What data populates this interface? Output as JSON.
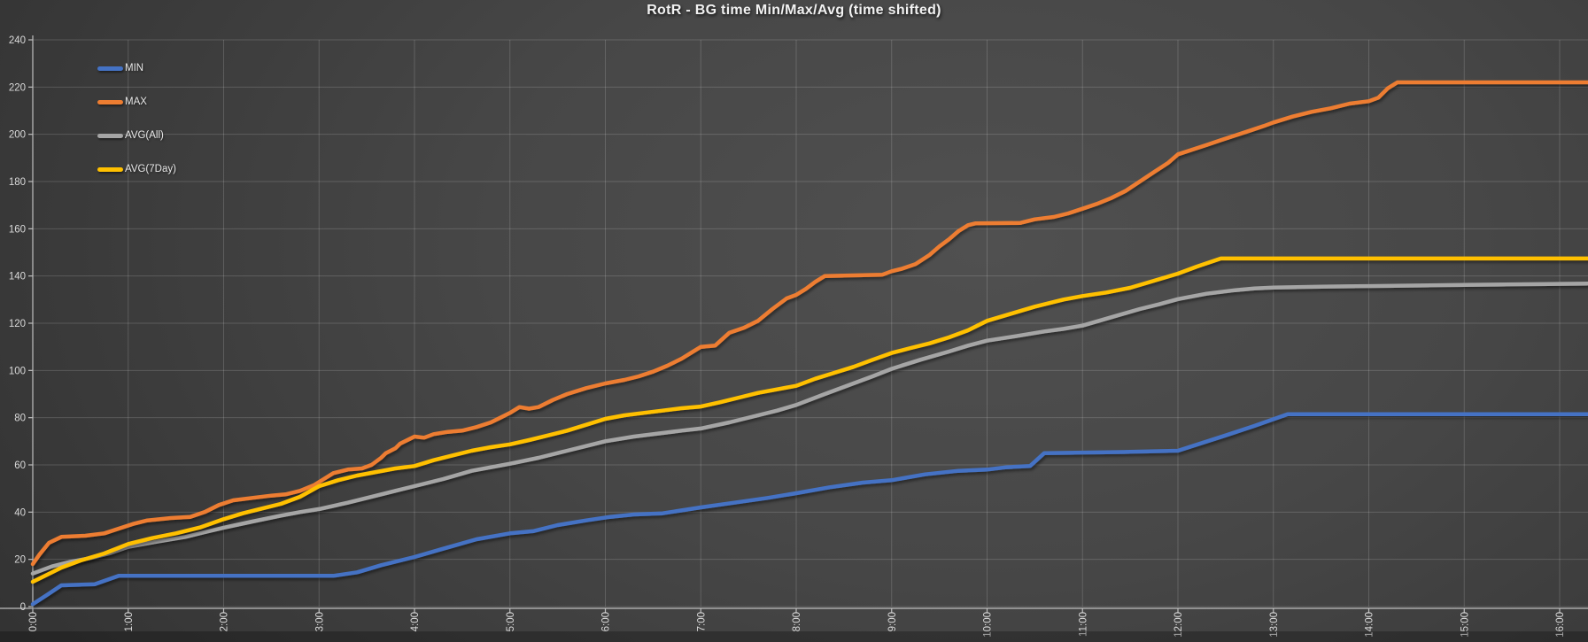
{
  "chart_data": {
    "type": "line",
    "title": "RotR - BG time Min/Max/Avg (time shifted)",
    "x_axis": {
      "tick_labels": [
        "0:00",
        "1:00",
        "2:00",
        "3:00",
        "4:00",
        "5:00",
        "6:00",
        "7:00",
        "8:00",
        "9:00",
        "10:00",
        "11:00",
        "12:00",
        "13:00",
        "14:00",
        "15:00",
        "16:00"
      ],
      "tick_hours": [
        0,
        1,
        2,
        3,
        4,
        5,
        6,
        7,
        8,
        9,
        10,
        11,
        12,
        13,
        14,
        15,
        16
      ],
      "range_hours": [
        0,
        16.3
      ]
    },
    "y_axis": {
      "ticks": [
        0,
        20,
        40,
        60,
        80,
        100,
        120,
        140,
        160,
        180,
        200,
        220,
        240
      ],
      "range": [
        0,
        240
      ]
    },
    "grid": true,
    "legend": {
      "position": "top-left",
      "entries": [
        "MIN",
        "MAX",
        "AVG(All)",
        "AVG(7Day)"
      ]
    },
    "series": [
      {
        "name": "MIN",
        "color": "#4472C4",
        "points": [
          [
            0,
            1
          ],
          [
            0.15,
            5
          ],
          [
            0.3,
            9
          ],
          [
            0.65,
            9.5
          ],
          [
            0.9,
            13
          ],
          [
            1.5,
            13
          ],
          [
            3.15,
            13
          ],
          [
            3.4,
            14.5
          ],
          [
            3.65,
            17.5
          ],
          [
            4,
            21
          ],
          [
            4.3,
            24.5
          ],
          [
            4.65,
            28.5
          ],
          [
            5,
            31
          ],
          [
            5.25,
            32
          ],
          [
            5.5,
            34.5
          ],
          [
            5.8,
            36.5
          ],
          [
            6.05,
            38
          ],
          [
            6.3,
            39
          ],
          [
            6.6,
            39.5
          ],
          [
            7,
            42
          ],
          [
            7.35,
            44
          ],
          [
            7.7,
            46
          ],
          [
            8,
            48
          ],
          [
            8.35,
            50.5
          ],
          [
            8.7,
            52.5
          ],
          [
            9,
            53.5
          ],
          [
            9.35,
            56
          ],
          [
            9.7,
            57.5
          ],
          [
            10,
            58
          ],
          [
            10.2,
            59
          ],
          [
            10.45,
            59.5
          ],
          [
            10.6,
            65
          ],
          [
            11.5,
            65.5
          ],
          [
            12,
            66
          ],
          [
            12.5,
            72.5
          ],
          [
            12.8,
            76.5
          ],
          [
            13.15,
            81.5
          ],
          [
            16.3,
            81.5
          ]
        ]
      },
      {
        "name": "MAX",
        "color": "#ED7D31",
        "points": [
          [
            0,
            18
          ],
          [
            0.07,
            22
          ],
          [
            0.17,
            27
          ],
          [
            0.3,
            29.5
          ],
          [
            0.55,
            30
          ],
          [
            0.75,
            31
          ],
          [
            0.9,
            33
          ],
          [
            1.05,
            35
          ],
          [
            1.2,
            36.5
          ],
          [
            1.45,
            37.5
          ],
          [
            1.65,
            38
          ],
          [
            1.8,
            40
          ],
          [
            1.95,
            43
          ],
          [
            2.1,
            45
          ],
          [
            2.3,
            46
          ],
          [
            2.5,
            47
          ],
          [
            2.65,
            47.5
          ],
          [
            2.8,
            49
          ],
          [
            2.95,
            51.5
          ],
          [
            3.05,
            54
          ],
          [
            3.15,
            56.5
          ],
          [
            3.3,
            58
          ],
          [
            3.45,
            58.5
          ],
          [
            3.55,
            60
          ],
          [
            3.65,
            63
          ],
          [
            3.7,
            65
          ],
          [
            3.8,
            67
          ],
          [
            3.85,
            69
          ],
          [
            3.95,
            71
          ],
          [
            4,
            72
          ],
          [
            4.1,
            71.5
          ],
          [
            4.2,
            73
          ],
          [
            4.35,
            74
          ],
          [
            4.5,
            74.5
          ],
          [
            4.65,
            76
          ],
          [
            4.8,
            78
          ],
          [
            4.9,
            80
          ],
          [
            5,
            82
          ],
          [
            5.1,
            84.5
          ],
          [
            5.2,
            83.8
          ],
          [
            5.3,
            84.5
          ],
          [
            5.45,
            87.5
          ],
          [
            5.6,
            90
          ],
          [
            5.8,
            92.5
          ],
          [
            6,
            94.5
          ],
          [
            6.2,
            96
          ],
          [
            6.35,
            97.5
          ],
          [
            6.5,
            99.5
          ],
          [
            6.65,
            102
          ],
          [
            6.8,
            105
          ],
          [
            6.9,
            107.5
          ],
          [
            7,
            110
          ],
          [
            7.15,
            110.5
          ],
          [
            7.3,
            116
          ],
          [
            7.45,
            118
          ],
          [
            7.6,
            121
          ],
          [
            7.75,
            126
          ],
          [
            7.9,
            130.5
          ],
          [
            8,
            132
          ],
          [
            8.1,
            134.5
          ],
          [
            8.2,
            137.5
          ],
          [
            8.3,
            140
          ],
          [
            8.9,
            140.5
          ],
          [
            9,
            142
          ],
          [
            9.1,
            143
          ],
          [
            9.25,
            145
          ],
          [
            9.4,
            149
          ],
          [
            9.5,
            152.5
          ],
          [
            9.6,
            155.5
          ],
          [
            9.7,
            159
          ],
          [
            9.8,
            161.5
          ],
          [
            9.88,
            162.3
          ],
          [
            10.35,
            162.5
          ],
          [
            10.5,
            164
          ],
          [
            10.7,
            165
          ],
          [
            10.85,
            166.5
          ],
          [
            11,
            168.5
          ],
          [
            11.15,
            170.5
          ],
          [
            11.3,
            173
          ],
          [
            11.45,
            176
          ],
          [
            11.6,
            180
          ],
          [
            11.75,
            184
          ],
          [
            11.9,
            188
          ],
          [
            12,
            191.5
          ],
          [
            12.15,
            193.5
          ],
          [
            12.3,
            195.5
          ],
          [
            12.45,
            197.5
          ],
          [
            12.6,
            199.5
          ],
          [
            12.75,
            201.5
          ],
          [
            12.9,
            203.5
          ],
          [
            13,
            205
          ],
          [
            13.2,
            207.5
          ],
          [
            13.4,
            209.5
          ],
          [
            13.6,
            211
          ],
          [
            13.8,
            213
          ],
          [
            14,
            214
          ],
          [
            14.1,
            215.5
          ],
          [
            14.2,
            219.5
          ],
          [
            14.3,
            222
          ],
          [
            16.3,
            222
          ]
        ]
      },
      {
        "name": "AVG(All)",
        "color": "#A5A5A5",
        "points": [
          [
            0,
            14
          ],
          [
            0.2,
            17
          ],
          [
            0.4,
            19
          ],
          [
            0.6,
            20.5
          ],
          [
            0.8,
            22.5
          ],
          [
            1,
            25.3
          ],
          [
            1.3,
            27.5
          ],
          [
            1.6,
            29.5
          ],
          [
            1.8,
            31.5
          ],
          [
            2,
            33.4
          ],
          [
            2.3,
            36
          ],
          [
            2.6,
            38.5
          ],
          [
            2.8,
            40
          ],
          [
            3,
            41.3
          ],
          [
            3.3,
            44
          ],
          [
            3.6,
            47
          ],
          [
            3.8,
            49
          ],
          [
            4,
            51
          ],
          [
            4.3,
            54
          ],
          [
            4.6,
            57.5
          ],
          [
            4.8,
            59
          ],
          [
            5,
            60.5
          ],
          [
            5.3,
            63
          ],
          [
            5.6,
            66
          ],
          [
            5.8,
            68
          ],
          [
            6,
            70
          ],
          [
            6.3,
            72
          ],
          [
            6.6,
            73.5
          ],
          [
            6.8,
            74.5
          ],
          [
            7,
            75.4
          ],
          [
            7.3,
            78
          ],
          [
            7.6,
            81
          ],
          [
            7.8,
            83
          ],
          [
            8,
            85.4
          ],
          [
            8.3,
            90
          ],
          [
            8.6,
            94.5
          ],
          [
            8.8,
            97.5
          ],
          [
            9,
            100.7
          ],
          [
            9.3,
            104.5
          ],
          [
            9.6,
            108
          ],
          [
            9.8,
            110.5
          ],
          [
            10,
            112.6
          ],
          [
            10.3,
            114.5
          ],
          [
            10.6,
            116.5
          ],
          [
            10.8,
            117.6
          ],
          [
            11,
            119
          ],
          [
            11.3,
            122.5
          ],
          [
            11.6,
            126
          ],
          [
            11.8,
            128
          ],
          [
            12,
            130.2
          ],
          [
            12.3,
            132.5
          ],
          [
            12.6,
            134
          ],
          [
            12.8,
            134.7
          ],
          [
            13,
            135.1
          ],
          [
            13.5,
            135.5
          ],
          [
            14,
            135.7
          ],
          [
            15,
            136.2
          ],
          [
            16.3,
            136.8
          ]
        ]
      },
      {
        "name": "AVG(7Day)",
        "color": "#FFC000",
        "points": [
          [
            0,
            10.5
          ],
          [
            0.15,
            13.5
          ],
          [
            0.3,
            16.5
          ],
          [
            0.5,
            19.5
          ],
          [
            0.75,
            22.5
          ],
          [
            1,
            26.5
          ],
          [
            1.25,
            29
          ],
          [
            1.5,
            31
          ],
          [
            1.75,
            33.5
          ],
          [
            2,
            37
          ],
          [
            2.2,
            39.5
          ],
          [
            2.4,
            41.5
          ],
          [
            2.6,
            43.5
          ],
          [
            2.8,
            46.5
          ],
          [
            3,
            51
          ],
          [
            3.2,
            53.5
          ],
          [
            3.4,
            55.5
          ],
          [
            3.6,
            57
          ],
          [
            3.8,
            58.5
          ],
          [
            4,
            59.5
          ],
          [
            4.2,
            62
          ],
          [
            4.4,
            64
          ],
          [
            4.6,
            66
          ],
          [
            4.8,
            67.5
          ],
          [
            5,
            68.7
          ],
          [
            5.2,
            70.5
          ],
          [
            5.4,
            72.5
          ],
          [
            5.6,
            74.5
          ],
          [
            5.8,
            77
          ],
          [
            6,
            79.5
          ],
          [
            6.2,
            81
          ],
          [
            6.4,
            82
          ],
          [
            6.6,
            83
          ],
          [
            6.8,
            84
          ],
          [
            7,
            84.7
          ],
          [
            7.2,
            86.5
          ],
          [
            7.4,
            88.5
          ],
          [
            7.6,
            90.5
          ],
          [
            7.8,
            92
          ],
          [
            8,
            93.5
          ],
          [
            8.2,
            96.5
          ],
          [
            8.4,
            99
          ],
          [
            8.6,
            101.5
          ],
          [
            8.8,
            104.5
          ],
          [
            9,
            107.4
          ],
          [
            9.2,
            109.5
          ],
          [
            9.4,
            111.5
          ],
          [
            9.6,
            114
          ],
          [
            9.8,
            117
          ],
          [
            10,
            121
          ],
          [
            10.25,
            124
          ],
          [
            10.5,
            127
          ],
          [
            10.8,
            130
          ],
          [
            11,
            131.5
          ],
          [
            11.25,
            133
          ],
          [
            11.5,
            135
          ],
          [
            11.75,
            138
          ],
          [
            12,
            141
          ],
          [
            12.2,
            144
          ],
          [
            12.45,
            147.4
          ],
          [
            16.3,
            147.4
          ]
        ]
      }
    ],
    "colors": {
      "background_center": "#505050",
      "background_edge": "#303030",
      "grid": "rgba(255,255,255,0.16)",
      "axis": "#BFBFBF",
      "tick_text": "#D9D9D9",
      "title_text": "#F2F2F2",
      "legend_text": "#E8E8E8",
      "bottom_band": "rgba(0,0,0,0.26)"
    }
  }
}
